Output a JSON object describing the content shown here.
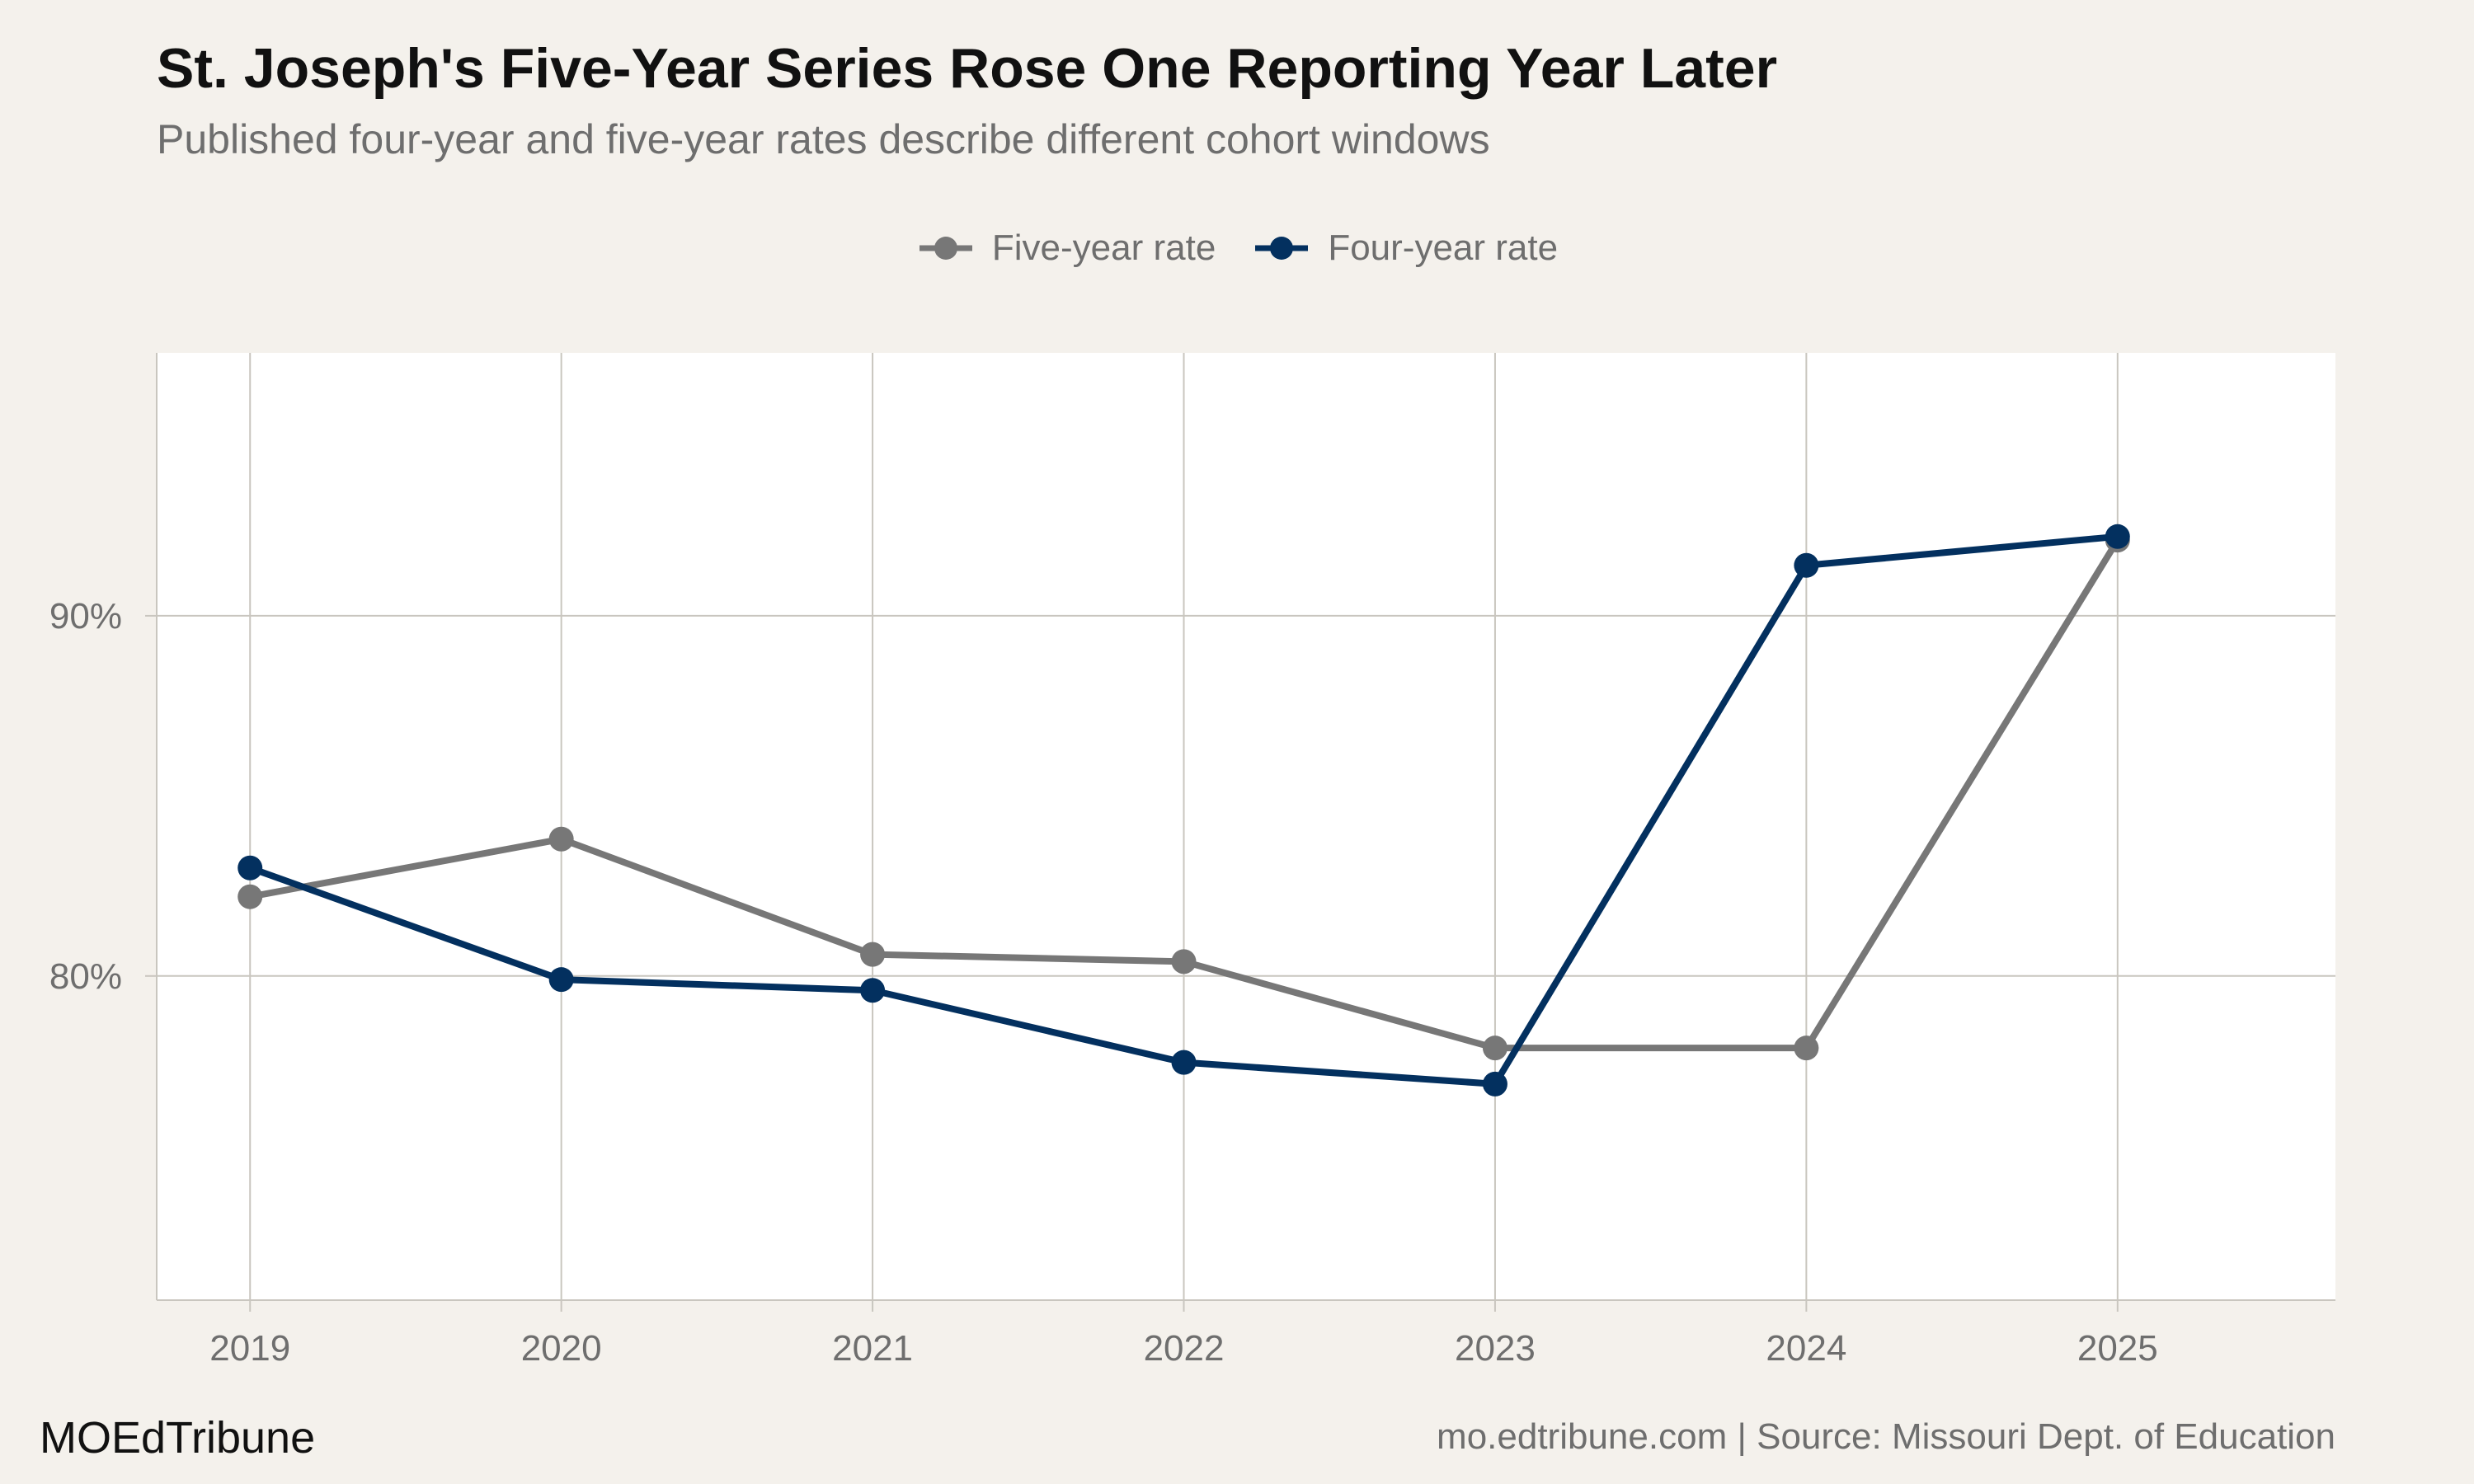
{
  "chart_data": {
    "type": "line",
    "title": "St. Joseph's Five-Year Series Rose One Reporting Year Later",
    "subtitle": "Published four-year and five-year rates describe different cohort windows",
    "xlabel": "",
    "ylabel": "",
    "x": [
      2019,
      2020,
      2021,
      2022,
      2023,
      2024,
      2025
    ],
    "x_tick_labels": [
      "2019",
      "2020",
      "2021",
      "2022",
      "2023",
      "2024",
      "2025"
    ],
    "y_ticks": [
      80,
      90
    ],
    "y_tick_labels": [
      "80%",
      "90%"
    ],
    "xlim": [
      2018.7,
      2025.7
    ],
    "ylim": [
      71,
      97.3
    ],
    "grid": true,
    "legend_position": "top",
    "series": [
      {
        "name": "Five-year rate",
        "color": "#777777",
        "values": [
          82.2,
          83.8,
          80.6,
          80.4,
          78.0,
          78.0,
          92.1
        ]
      },
      {
        "name": "Four-year rate",
        "color": "#03305f",
        "values": [
          83.0,
          79.9,
          79.6,
          77.6,
          77.0,
          91.4,
          92.2
        ]
      }
    ]
  },
  "footer": {
    "brand": "MOEdTribune",
    "source": "mo.edtribune.com | Source: Missouri Dept. of Education"
  }
}
